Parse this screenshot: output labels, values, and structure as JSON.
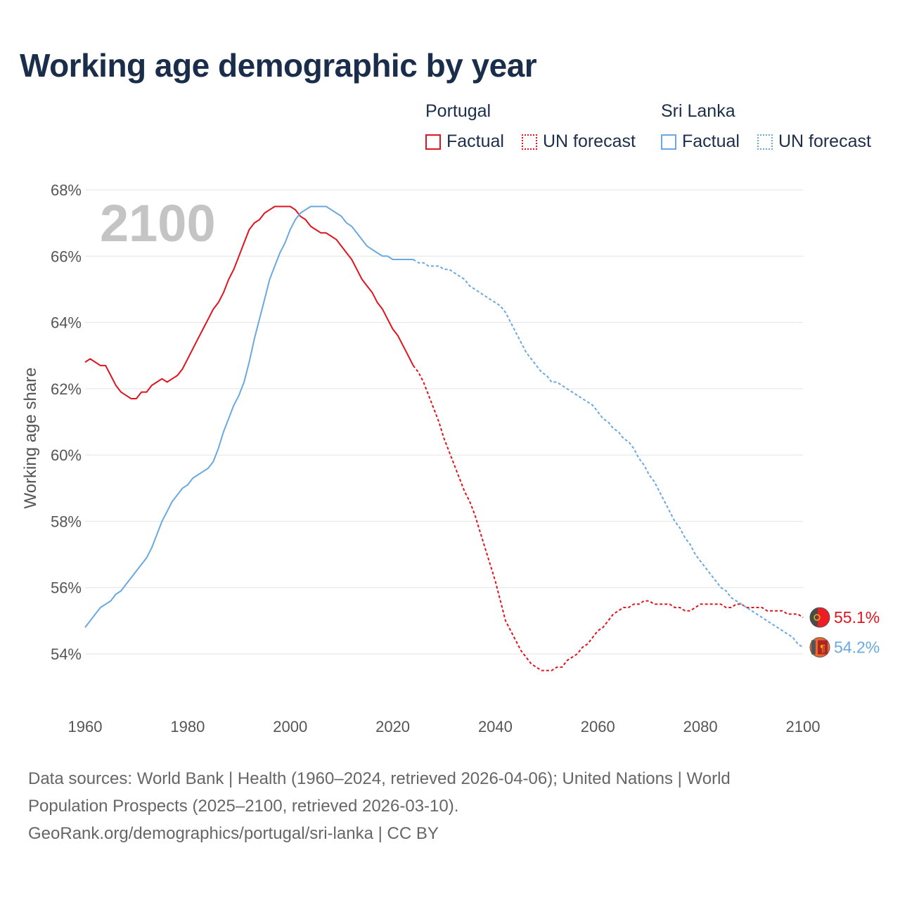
{
  "chart_data": {
    "type": "line",
    "title": "Working age demographic by year",
    "ylabel": "Working age share",
    "xlabel": "",
    "year_label": "2100",
    "xlim": [
      1960,
      2100
    ],
    "ylim": [
      53,
      68.2
    ],
    "x_ticks": [
      "1960",
      "1980",
      "2000",
      "2020",
      "2040",
      "2060",
      "2080",
      "2100"
    ],
    "y_ticks": [
      "54%",
      "56%",
      "58%",
      "60%",
      "62%",
      "64%",
      "66%",
      "68%"
    ],
    "legend": {
      "groups": [
        {
          "name": "Portugal",
          "factual": "Factual",
          "forecast": "UN forecast"
        },
        {
          "name": "Sri Lanka",
          "factual": "Factual",
          "forecast": "UN forecast"
        }
      ]
    },
    "series": [
      {
        "name": "Portugal",
        "color": "#e0141e",
        "end_label": "55.1%",
        "factual": [
          [
            1960,
            62.8
          ],
          [
            1961,
            62.9
          ],
          [
            1962,
            62.8
          ],
          [
            1963,
            62.7
          ],
          [
            1964,
            62.7
          ],
          [
            1965,
            62.4
          ],
          [
            1966,
            62.1
          ],
          [
            1967,
            61.9
          ],
          [
            1968,
            61.8
          ],
          [
            1969,
            61.7
          ],
          [
            1970,
            61.7
          ],
          [
            1971,
            61.9
          ],
          [
            1972,
            61.9
          ],
          [
            1973,
            62.1
          ],
          [
            1974,
            62.2
          ],
          [
            1975,
            62.3
          ],
          [
            1976,
            62.2
          ],
          [
            1977,
            62.3
          ],
          [
            1978,
            62.4
          ],
          [
            1979,
            62.6
          ],
          [
            1980,
            62.9
          ],
          [
            1981,
            63.2
          ],
          [
            1982,
            63.5
          ],
          [
            1983,
            63.8
          ],
          [
            1984,
            64.1
          ],
          [
            1985,
            64.4
          ],
          [
            1986,
            64.6
          ],
          [
            1987,
            64.9
          ],
          [
            1988,
            65.3
          ],
          [
            1989,
            65.6
          ],
          [
            1990,
            66.0
          ],
          [
            1991,
            66.4
          ],
          [
            1992,
            66.8
          ],
          [
            1993,
            67.0
          ],
          [
            1994,
            67.1
          ],
          [
            1995,
            67.3
          ],
          [
            1996,
            67.4
          ],
          [
            1997,
            67.5
          ],
          [
            1998,
            67.5
          ],
          [
            1999,
            67.5
          ],
          [
            2000,
            67.5
          ],
          [
            2001,
            67.4
          ],
          [
            2002,
            67.2
          ],
          [
            2003,
            67.1
          ],
          [
            2004,
            66.9
          ],
          [
            2005,
            66.8
          ],
          [
            2006,
            66.7
          ],
          [
            2007,
            66.7
          ],
          [
            2008,
            66.6
          ],
          [
            2009,
            66.5
          ],
          [
            2010,
            66.3
          ],
          [
            2011,
            66.1
          ],
          [
            2012,
            65.9
          ],
          [
            2013,
            65.6
          ],
          [
            2014,
            65.3
          ],
          [
            2015,
            65.1
          ],
          [
            2016,
            64.9
          ],
          [
            2017,
            64.6
          ],
          [
            2018,
            64.4
          ],
          [
            2019,
            64.1
          ],
          [
            2020,
            63.8
          ],
          [
            2021,
            63.6
          ],
          [
            2022,
            63.3
          ],
          [
            2023,
            63.0
          ],
          [
            2024,
            62.7
          ]
        ],
        "forecast": [
          [
            2024,
            62.7
          ],
          [
            2025,
            62.5
          ],
          [
            2026,
            62.2
          ],
          [
            2027,
            61.8
          ],
          [
            2028,
            61.4
          ],
          [
            2029,
            61.0
          ],
          [
            2030,
            60.5
          ],
          [
            2031,
            60.1
          ],
          [
            2032,
            59.7
          ],
          [
            2033,
            59.3
          ],
          [
            2034,
            58.9
          ],
          [
            2035,
            58.6
          ],
          [
            2036,
            58.2
          ],
          [
            2037,
            57.7
          ],
          [
            2038,
            57.2
          ],
          [
            2039,
            56.7
          ],
          [
            2040,
            56.2
          ],
          [
            2041,
            55.6
          ],
          [
            2042,
            55.0
          ],
          [
            2043,
            54.7
          ],
          [
            2044,
            54.4
          ],
          [
            2045,
            54.1
          ],
          [
            2046,
            53.9
          ],
          [
            2047,
            53.7
          ],
          [
            2048,
            53.6
          ],
          [
            2049,
            53.5
          ],
          [
            2050,
            53.5
          ],
          [
            2051,
            53.5
          ],
          [
            2052,
            53.6
          ],
          [
            2053,
            53.6
          ],
          [
            2054,
            53.8
          ],
          [
            2055,
            53.9
          ],
          [
            2056,
            54.0
          ],
          [
            2057,
            54.2
          ],
          [
            2058,
            54.3
          ],
          [
            2059,
            54.5
          ],
          [
            2060,
            54.7
          ],
          [
            2061,
            54.8
          ],
          [
            2062,
            55.0
          ],
          [
            2063,
            55.2
          ],
          [
            2064,
            55.3
          ],
          [
            2065,
            55.4
          ],
          [
            2066,
            55.4
          ],
          [
            2067,
            55.5
          ],
          [
            2068,
            55.5
          ],
          [
            2069,
            55.6
          ],
          [
            2070,
            55.6
          ],
          [
            2071,
            55.5
          ],
          [
            2072,
            55.5
          ],
          [
            2073,
            55.5
          ],
          [
            2074,
            55.5
          ],
          [
            2075,
            55.4
          ],
          [
            2076,
            55.4
          ],
          [
            2077,
            55.3
          ],
          [
            2078,
            55.3
          ],
          [
            2079,
            55.4
          ],
          [
            2080,
            55.5
          ],
          [
            2081,
            55.5
          ],
          [
            2082,
            55.5
          ],
          [
            2083,
            55.5
          ],
          [
            2084,
            55.5
          ],
          [
            2085,
            55.4
          ],
          [
            2086,
            55.4
          ],
          [
            2087,
            55.5
          ],
          [
            2088,
            55.5
          ],
          [
            2089,
            55.4
          ],
          [
            2090,
            55.4
          ],
          [
            2091,
            55.4
          ],
          [
            2092,
            55.4
          ],
          [
            2093,
            55.3
          ],
          [
            2094,
            55.3
          ],
          [
            2095,
            55.3
          ],
          [
            2096,
            55.3
          ],
          [
            2097,
            55.2
          ],
          [
            2098,
            55.2
          ],
          [
            2099,
            55.2
          ],
          [
            2100,
            55.1
          ]
        ]
      },
      {
        "name": "Sri Lanka",
        "color": "#6aa9e0",
        "end_label": "54.2%",
        "factual": [
          [
            1960,
            54.8
          ],
          [
            1961,
            55.0
          ],
          [
            1962,
            55.2
          ],
          [
            1963,
            55.4
          ],
          [
            1964,
            55.5
          ],
          [
            1965,
            55.6
          ],
          [
            1966,
            55.8
          ],
          [
            1967,
            55.9
          ],
          [
            1968,
            56.1
          ],
          [
            1969,
            56.3
          ],
          [
            1970,
            56.5
          ],
          [
            1971,
            56.7
          ],
          [
            1972,
            56.9
          ],
          [
            1973,
            57.2
          ],
          [
            1974,
            57.6
          ],
          [
            1975,
            58.0
          ],
          [
            1976,
            58.3
          ],
          [
            1977,
            58.6
          ],
          [
            1978,
            58.8
          ],
          [
            1979,
            59.0
          ],
          [
            1980,
            59.1
          ],
          [
            1981,
            59.3
          ],
          [
            1982,
            59.4
          ],
          [
            1983,
            59.5
          ],
          [
            1984,
            59.6
          ],
          [
            1985,
            59.8
          ],
          [
            1986,
            60.2
          ],
          [
            1987,
            60.7
          ],
          [
            1988,
            61.1
          ],
          [
            1989,
            61.5
          ],
          [
            1990,
            61.8
          ],
          [
            1991,
            62.2
          ],
          [
            1992,
            62.8
          ],
          [
            1993,
            63.5
          ],
          [
            1994,
            64.1
          ],
          [
            1995,
            64.7
          ],
          [
            1996,
            65.3
          ],
          [
            1997,
            65.7
          ],
          [
            1998,
            66.1
          ],
          [
            1999,
            66.4
          ],
          [
            2000,
            66.8
          ],
          [
            2001,
            67.1
          ],
          [
            2002,
            67.3
          ],
          [
            2003,
            67.4
          ],
          [
            2004,
            67.5
          ],
          [
            2005,
            67.5
          ],
          [
            2006,
            67.5
          ],
          [
            2007,
            67.5
          ],
          [
            2008,
            67.4
          ],
          [
            2009,
            67.3
          ],
          [
            2010,
            67.2
          ],
          [
            2011,
            67.0
          ],
          [
            2012,
            66.9
          ],
          [
            2013,
            66.7
          ],
          [
            2014,
            66.5
          ],
          [
            2015,
            66.3
          ],
          [
            2016,
            66.2
          ],
          [
            2017,
            66.1
          ],
          [
            2018,
            66.0
          ],
          [
            2019,
            66.0
          ],
          [
            2020,
            65.9
          ],
          [
            2021,
            65.9
          ],
          [
            2022,
            65.9
          ],
          [
            2023,
            65.9
          ],
          [
            2024,
            65.9
          ]
        ],
        "forecast": [
          [
            2024,
            65.9
          ],
          [
            2025,
            65.8
          ],
          [
            2026,
            65.8
          ],
          [
            2027,
            65.7
          ],
          [
            2028,
            65.7
          ],
          [
            2029,
            65.7
          ],
          [
            2030,
            65.6
          ],
          [
            2031,
            65.6
          ],
          [
            2032,
            65.5
          ],
          [
            2033,
            65.4
          ],
          [
            2034,
            65.3
          ],
          [
            2035,
            65.1
          ],
          [
            2036,
            65.0
          ],
          [
            2037,
            64.9
          ],
          [
            2038,
            64.8
          ],
          [
            2039,
            64.7
          ],
          [
            2040,
            64.6
          ],
          [
            2041,
            64.5
          ],
          [
            2042,
            64.3
          ],
          [
            2043,
            64.0
          ],
          [
            2044,
            63.7
          ],
          [
            2045,
            63.4
          ],
          [
            2046,
            63.1
          ],
          [
            2047,
            62.9
          ],
          [
            2048,
            62.7
          ],
          [
            2049,
            62.5
          ],
          [
            2050,
            62.4
          ],
          [
            2051,
            62.2
          ],
          [
            2052,
            62.2
          ],
          [
            2053,
            62.1
          ],
          [
            2054,
            62.0
          ],
          [
            2055,
            61.9
          ],
          [
            2056,
            61.8
          ],
          [
            2057,
            61.7
          ],
          [
            2058,
            61.6
          ],
          [
            2059,
            61.5
          ],
          [
            2060,
            61.3
          ],
          [
            2061,
            61.1
          ],
          [
            2062,
            61.0
          ],
          [
            2063,
            60.8
          ],
          [
            2064,
            60.7
          ],
          [
            2065,
            60.5
          ],
          [
            2066,
            60.4
          ],
          [
            2067,
            60.2
          ],
          [
            2068,
            59.9
          ],
          [
            2069,
            59.7
          ],
          [
            2070,
            59.4
          ],
          [
            2071,
            59.2
          ],
          [
            2072,
            58.9
          ],
          [
            2073,
            58.6
          ],
          [
            2074,
            58.3
          ],
          [
            2075,
            58.0
          ],
          [
            2076,
            57.8
          ],
          [
            2077,
            57.5
          ],
          [
            2078,
            57.3
          ],
          [
            2079,
            57.0
          ],
          [
            2080,
            56.8
          ],
          [
            2081,
            56.6
          ],
          [
            2082,
            56.4
          ],
          [
            2083,
            56.2
          ],
          [
            2084,
            56.0
          ],
          [
            2085,
            55.9
          ],
          [
            2086,
            55.7
          ],
          [
            2087,
            55.6
          ],
          [
            2088,
            55.5
          ],
          [
            2089,
            55.4
          ],
          [
            2090,
            55.3
          ],
          [
            2091,
            55.2
          ],
          [
            2092,
            55.1
          ],
          [
            2093,
            55.0
          ],
          [
            2094,
            54.9
          ],
          [
            2095,
            54.8
          ],
          [
            2096,
            54.7
          ],
          [
            2097,
            54.6
          ],
          [
            2098,
            54.5
          ],
          [
            2099,
            54.3
          ],
          [
            2100,
            54.2
          ]
        ]
      }
    ]
  },
  "footer": {
    "line1": "Data sources: World Bank | Health (1960–2024, retrieved 2026-04-06); United Nations | World",
    "line2": "Population Prospects (2025–2100, retrieved 2026-03-10).",
    "line3": "GeoRank.org/demographics/portugal/sri-lanka | CC BY"
  }
}
